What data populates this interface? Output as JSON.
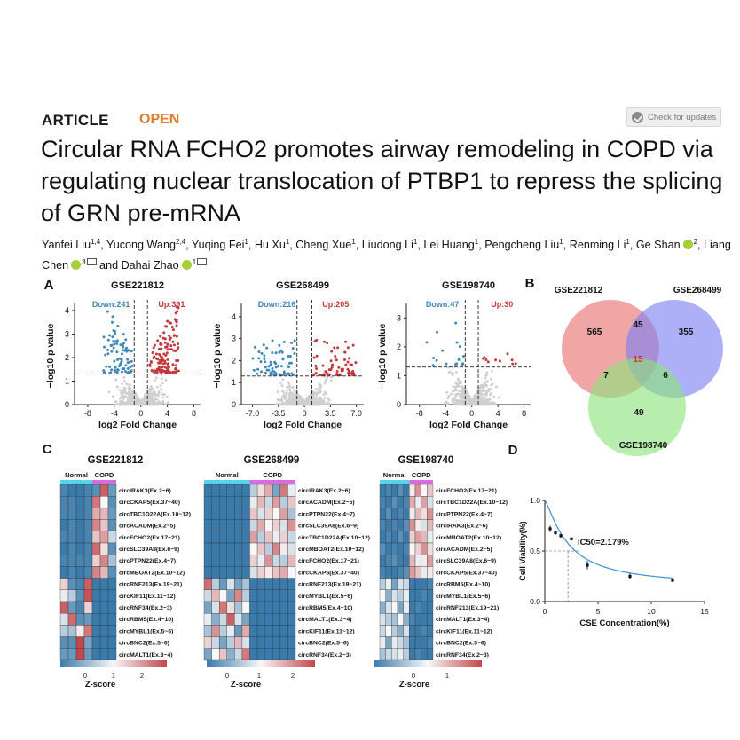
{
  "header": {
    "article_label": "ARTICLE",
    "open_label": "OPEN",
    "check_updates": "Check for updates"
  },
  "paper": {
    "title": "Circular RNA FCHO2 promotes airway remodeling in COPD via regulating nuclear translocation of PTBP1 to repress the splicing of GRN pre-mRNA",
    "authors": [
      {
        "name": "Yanfei Liu",
        "aff": "1,4"
      },
      {
        "name": "Yucong Wang",
        "aff": "2,4"
      },
      {
        "name": "Yuqing Fei",
        "aff": "1"
      },
      {
        "name": "Hu Xu",
        "aff": "1"
      },
      {
        "name": "Cheng Xue",
        "aff": "1"
      },
      {
        "name": "Liudong Li",
        "aff": "1"
      },
      {
        "name": "Lei Huang",
        "aff": "1"
      },
      {
        "name": "Pengcheng Liu",
        "aff": "1"
      },
      {
        "name": "Renming Li",
        "aff": "1"
      },
      {
        "name": "Ge Shan",
        "aff": "2",
        "orcid": true
      },
      {
        "name": "Liang Chen",
        "aff": "3",
        "orcid": true,
        "mail": true
      },
      {
        "name": "Dahai Zhao",
        "aff": "1",
        "orcid": true,
        "mail": true
      }
    ],
    "author_joiner": "and"
  },
  "figure": {
    "panel_labels": [
      "A",
      "B",
      "C",
      "D"
    ]
  },
  "chart_data": [
    {
      "type": "scatter",
      "title": "GSE221812",
      "xlabel": "log2 Fold Change",
      "ylabel": "−log10 p value",
      "xticks": [
        "-8",
        "-4",
        "0",
        "4",
        "8"
      ],
      "yticks": [
        "0",
        "1",
        "2",
        "3",
        "4"
      ],
      "xlim": [
        -10,
        9
      ],
      "ylim": [
        0,
        4.3
      ],
      "series": [
        {
          "name": "Down:241",
          "color": "#3f88b8",
          "count": 241
        },
        {
          "name": "Up:391",
          "color": "#c2383b",
          "count": 391
        }
      ],
      "thresholds": {
        "fc": 1,
        "p": 1.3
      }
    },
    {
      "type": "scatter",
      "title": "GSE268499",
      "xlabel": "log2 Fold Change",
      "ylabel": "−log10 p value",
      "xticks": [
        "-7.0",
        "-3.5",
        "0",
        "3.5",
        "7.0"
      ],
      "yticks": [
        "0",
        "1",
        "2",
        "3",
        "4"
      ],
      "xlim": [
        -8.5,
        8
      ],
      "ylim": [
        0,
        4.6
      ],
      "series": [
        {
          "name": "Down:216",
          "color": "#3f88b8",
          "count": 216
        },
        {
          "name": "Up:205",
          "color": "#c2383b",
          "count": 205
        }
      ],
      "thresholds": {
        "fc": 1,
        "p": 1.3
      }
    },
    {
      "type": "scatter",
      "title": "GSE198740",
      "xlabel": "log2 Fold Change",
      "ylabel": "−log10 p value",
      "xticks": [
        "-8",
        "-4",
        "0",
        "4",
        "8"
      ],
      "yticks": [
        "0",
        "1",
        "2",
        "3"
      ],
      "xlim": [
        -10,
        9
      ],
      "ylim": [
        0,
        3.5
      ],
      "series": [
        {
          "name": "Down:47",
          "color": "#3f88b8",
          "count": 47
        },
        {
          "name": "Up:30",
          "color": "#c2383b",
          "count": 30
        }
      ],
      "thresholds": {
        "fc": 1,
        "p": 1.3
      }
    },
    {
      "type": "venn",
      "sets": [
        {
          "name": "GSE221812",
          "color": "#e8706f"
        },
        {
          "name": "GSE268499",
          "color": "#7d80f2"
        },
        {
          "name": "GSE198740",
          "color": "#8ae37a"
        }
      ],
      "regions": {
        "A": "565",
        "B": "355",
        "C": "49",
        "AB": "45",
        "AC": "7",
        "BC": "6",
        "ABC": "15"
      }
    },
    {
      "type": "heatmap",
      "title": "GSE221812",
      "groups": [
        {
          "name": "Normal",
          "n": 4
        },
        {
          "name": "COPD",
          "n": 3
        }
      ],
      "rows": [
        "circIRAK3(Ex.2~6)",
        "circCKAP5(Ex.37~40)",
        "circTBC1D22A(Ex.10~12)",
        "circACADM(Ex.2~5)",
        "circFCHO2(Ex.17~21)",
        "circSLC39A8(Ex.6~9)",
        "circPTPN22(Ex.4~7)",
        "circMBOAT2(Ex.10~12)",
        "circRNF213(Ex.19~21)",
        "circKIF11(Ex.11~12)",
        "circRNF34(Ex.2~3)",
        "circRBM5(Ex.4~10)",
        "circMYBL1(Ex.5~6)",
        "circBNC2(Ex.5~6)",
        "circMALT1(Ex.3~4)"
      ],
      "values": [
        [
          -0.5,
          -0.6,
          -0.6,
          -0.5,
          -0.4,
          1.8,
          -0.3
        ],
        [
          -0.5,
          -0.5,
          -0.6,
          -0.5,
          1.6,
          0.6,
          -0.4
        ],
        [
          -0.5,
          -0.5,
          -0.6,
          -0.5,
          1.2,
          1.1,
          -0.3
        ],
        [
          -0.6,
          -0.5,
          -0.6,
          -0.5,
          1.5,
          1.0,
          -0.4
        ],
        [
          -0.5,
          -0.5,
          -0.6,
          -0.5,
          1.0,
          1.3,
          0.3
        ],
        [
          -0.6,
          -0.5,
          -0.6,
          -0.5,
          1.7,
          0.8,
          -0.4
        ],
        [
          -0.5,
          -0.5,
          -0.5,
          -0.5,
          0.9,
          1.5,
          0.1
        ],
        [
          -0.6,
          -0.5,
          -0.6,
          -0.5,
          1.5,
          1.1,
          -0.4
        ],
        [
          0.9,
          -0.4,
          -0.5,
          1.8,
          -0.6,
          -0.6,
          -0.6
        ],
        [
          0.5,
          0.2,
          -0.4,
          1.9,
          -0.6,
          -0.6,
          -0.6
        ],
        [
          1.8,
          -0.3,
          -0.5,
          0.9,
          -0.6,
          -0.6,
          -0.6
        ],
        [
          0.4,
          1.7,
          -0.4,
          -0.3,
          -0.6,
          -0.6,
          -0.6
        ],
        [
          0.2,
          0.1,
          0.7,
          1.6,
          -0.6,
          -0.6,
          -0.6
        ],
        [
          -0.4,
          -0.4,
          2.0,
          -0.2,
          -0.6,
          -0.6,
          -0.6
        ],
        [
          -0.3,
          -0.3,
          2.1,
          -0.3,
          -0.6,
          -0.6,
          -0.6
        ]
      ],
      "legend_ticks": [
        "0",
        "1",
        "2"
      ],
      "legend_title": "Z-score"
    },
    {
      "type": "heatmap",
      "title": "GSE268499",
      "groups": [
        {
          "name": "Normal",
          "n": 6
        },
        {
          "name": "COPD",
          "n": 6
        }
      ],
      "rows": [
        "circIRAK3(Ex.2~6)",
        "circACADM(Ex.2~5)",
        "circPTPN22(Ex.4~7)",
        "circSLC39A8(Ex.6~9)",
        "circTBC1D22A(Ex.10~12)",
        "circMBOAT2(Ex.10~12)",
        "circFCHO2(Ex.17~21)",
        "circCKAP5(Ex.37~40)",
        "circRNF213(Ex.19~21)",
        "circMYBL1(Ex.5~6)",
        "circRBM5(Ex.4~10)",
        "circMALT1(Ex.3~4)",
        "circKIF11(Ex.11~12)",
        "circBNC2(Ex.5~6)",
        "circRNF34(Ex.2~3)"
      ],
      "values": [
        [
          -0.6,
          -0.6,
          -0.6,
          -0.6,
          -0.6,
          -0.6,
          0.2,
          0.8,
          1.2,
          -0.2,
          1.6,
          0.5
        ],
        [
          -0.6,
          -0.6,
          -0.6,
          -0.6,
          -0.6,
          -0.6,
          0.5,
          1.1,
          0.3,
          1.3,
          0.2,
          1.0
        ],
        [
          -0.6,
          -0.6,
          -0.6,
          -0.6,
          -0.6,
          -0.6,
          1.0,
          0.4,
          0.9,
          0.6,
          1.3,
          0.1
        ],
        [
          -0.6,
          -0.6,
          -0.6,
          -0.6,
          -0.6,
          -0.6,
          0.3,
          1.2,
          0.6,
          0.9,
          0.4,
          1.4
        ],
        [
          -0.6,
          -0.6,
          -0.6,
          -0.6,
          -0.6,
          -0.6,
          1.3,
          0.2,
          1.0,
          0.5,
          0.9,
          0.3
        ],
        [
          -0.6,
          -0.6,
          -0.6,
          -0.6,
          -0.6,
          -0.6,
          0.6,
          1.0,
          0.2,
          1.5,
          0.7,
          0.4
        ],
        [
          -0.6,
          -0.6,
          -0.6,
          -0.6,
          -0.6,
          -0.6,
          0.9,
          0.5,
          1.4,
          0.3,
          0.2,
          1.1
        ],
        [
          -0.6,
          -0.6,
          -0.6,
          -0.6,
          -0.6,
          -0.6,
          0.4,
          0.9,
          0.7,
          1.0,
          1.2,
          0.6
        ],
        [
          1.7,
          0.2,
          -0.3,
          0.4,
          -0.2,
          0.1,
          -0.6,
          -0.6,
          -0.6,
          -0.6,
          -0.6,
          -0.6
        ],
        [
          0.3,
          1.1,
          0.6,
          -0.2,
          1.5,
          0.2,
          -0.6,
          -0.6,
          -0.6,
          -0.6,
          -0.6,
          -0.6
        ],
        [
          -0.2,
          0.4,
          1.6,
          0.8,
          0.1,
          0.6,
          -0.6,
          -0.6,
          -0.6,
          -0.6,
          -0.6,
          -0.6
        ],
        [
          0.5,
          -0.1,
          0.3,
          1.8,
          0.4,
          -0.2,
          -0.6,
          -0.6,
          -0.6,
          -0.6,
          -0.6,
          -0.6
        ],
        [
          0.1,
          1.4,
          0.2,
          0.5,
          -0.3,
          1.2,
          -0.6,
          -0.6,
          -0.6,
          -0.6,
          -0.6,
          -0.6
        ],
        [
          0.9,
          0.3,
          -0.2,
          0.2,
          1.1,
          0.4,
          -0.6,
          -0.6,
          -0.6,
          -0.6,
          -0.6,
          -0.6
        ],
        [
          -0.2,
          0.6,
          1.0,
          -0.1,
          0.3,
          1.6,
          -0.6,
          -0.6,
          -0.6,
          -0.6,
          -0.6,
          -0.6
        ]
      ],
      "legend_ticks": [
        "0",
        "1",
        "2"
      ],
      "legend_title": "Z-score"
    },
    {
      "type": "heatmap",
      "title": "GSE198740",
      "groups": [
        {
          "name": "Normal",
          "n": 5
        },
        {
          "name": "COPD",
          "n": 4
        }
      ],
      "rows": [
        "circFCHO2(Ex.17~21)",
        "circTBC1D22A(Ex.10~12)",
        "circPTPN22(Ex.4~7)",
        "circIRAK3(Ex.2~6)",
        "circMBOAT2(Ex.10~12)",
        "circACADM(Ex.2~5)",
        "circSLC39A8(Ex.6~9)",
        "circCKAP5(Ex.37~40)",
        "circRBM5(Ex.4~10)",
        "circMYBL1(Ex.5~6)",
        "circRNF213(Ex.19~21)",
        "circMALT1(Ex.3~4)",
        "circKIF11(Ex.11~12)",
        "circBNC2(Ex.5~6)",
        "circRNF34(Ex.2~3)"
      ],
      "values": [
        [
          -0.7,
          -0.5,
          -0.6,
          -0.4,
          -0.6,
          0.7,
          1.4,
          0.6,
          1.0
        ],
        [
          -0.5,
          -0.6,
          -0.4,
          -0.6,
          -0.5,
          1.2,
          0.5,
          1.3,
          0.4
        ],
        [
          -0.6,
          -0.4,
          -0.6,
          -0.5,
          -0.6,
          0.5,
          1.1,
          0.8,
          1.4
        ],
        [
          -0.5,
          -0.6,
          -0.5,
          -0.6,
          -0.4,
          1.4,
          0.7,
          0.4,
          1.1
        ],
        [
          -0.6,
          -0.5,
          -0.6,
          -0.4,
          -0.6,
          0.9,
          1.3,
          1.1,
          0.5
        ],
        [
          -0.4,
          -0.6,
          -0.5,
          -0.6,
          -0.5,
          0.6,
          0.9,
          1.4,
          0.8
        ],
        [
          -0.6,
          -0.5,
          -0.4,
          -0.6,
          -0.6,
          1.1,
          0.5,
          0.7,
          1.3
        ],
        [
          -0.5,
          -0.6,
          -0.6,
          -0.5,
          -0.4,
          1.3,
          1.0,
          0.5,
          0.7
        ],
        [
          0.2,
          0.5,
          -0.2,
          0.4,
          0.3,
          -0.8,
          -0.6,
          -0.7,
          -0.5
        ],
        [
          0.6,
          -0.1,
          0.4,
          0.2,
          0.5,
          -0.6,
          -0.8,
          -0.5,
          -0.7
        ],
        [
          -0.1,
          0.4,
          0.6,
          -0.2,
          0.5,
          -0.7,
          -0.5,
          -0.8,
          -0.6
        ],
        [
          0.4,
          0.2,
          0.1,
          0.6,
          -0.1,
          -0.5,
          -0.7,
          -0.6,
          -0.8
        ],
        [
          0.3,
          0.6,
          0.2,
          -0.1,
          0.4,
          -0.8,
          -0.6,
          -0.5,
          -0.7
        ],
        [
          0.5,
          -0.2,
          0.5,
          0.3,
          0.1,
          -0.6,
          -0.8,
          -0.7,
          -0.5
        ],
        [
          0.1,
          0.3,
          0.4,
          0.5,
          0.2,
          -0.7,
          -0.5,
          -0.6,
          -0.8
        ]
      ],
      "legend_ticks": [
        "0",
        "1"
      ],
      "legend_title": "Z-score"
    },
    {
      "type": "line",
      "xlabel": "CSE Concentration(%)",
      "ylabel": "Cell Viability(%)",
      "xticks": [
        0,
        5,
        10,
        15
      ],
      "yticks": [
        0.0,
        0.5,
        1.0
      ],
      "xlim": [
        0,
        15
      ],
      "ylim": [
        0,
        1.0
      ],
      "annotation": "IC50=2.179%",
      "ic50": 2.179,
      "points": [
        {
          "x": 0.5,
          "y": 0.72,
          "err": 0.03
        },
        {
          "x": 1,
          "y": 0.68,
          "err": 0.02
        },
        {
          "x": 1.5,
          "y": 0.65,
          "err": 0.02
        },
        {
          "x": 2.5,
          "y": 0.62,
          "err": 0.01
        },
        {
          "x": 4,
          "y": 0.36,
          "err": 0.04
        },
        {
          "x": 8,
          "y": 0.25,
          "err": 0.03
        },
        {
          "x": 12,
          "y": 0.21,
          "err": 0.01
        }
      ],
      "curve_color": "#3d8fd1"
    }
  ]
}
